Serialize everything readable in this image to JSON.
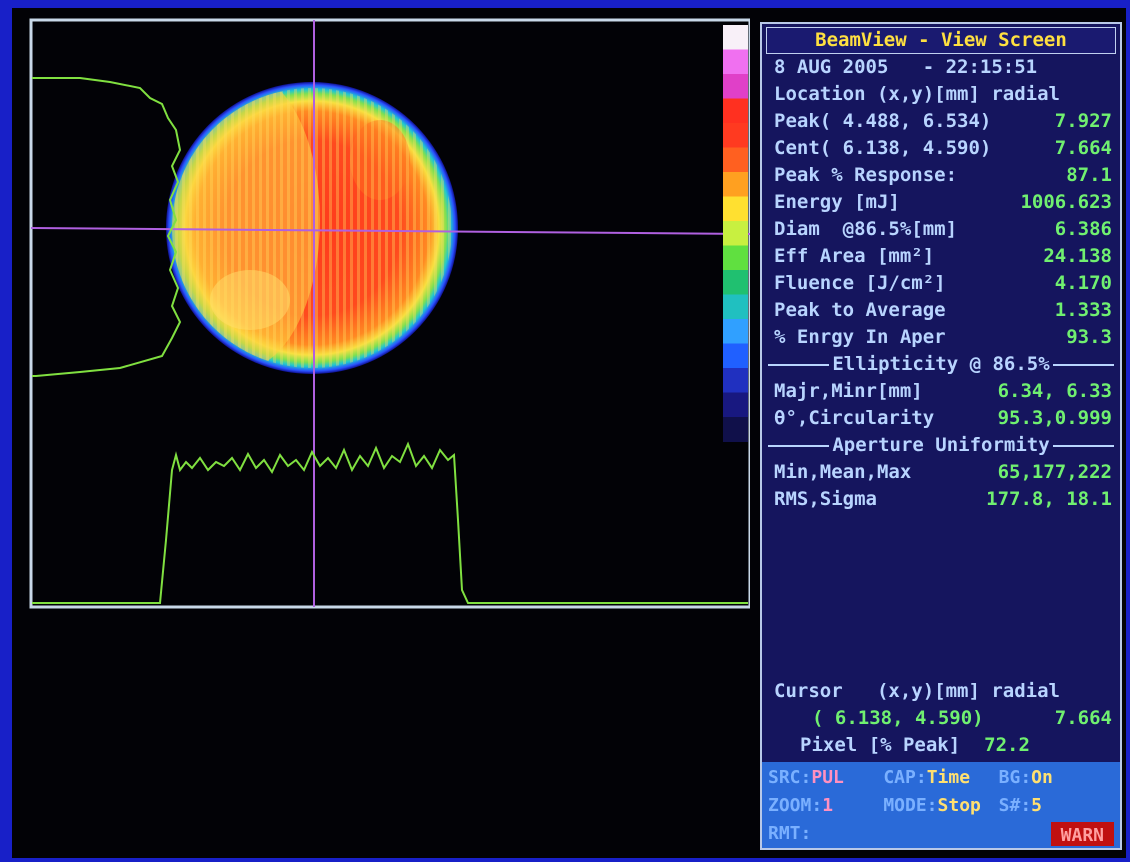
{
  "panel": {
    "title": "BeamView - View Screen",
    "timestamp": "8 AUG 2005   - 22:15:51",
    "location_header": "Location (x,y)[mm] radial",
    "rows": [
      {
        "label": "Peak( 4.488, 6.534)",
        "value": "7.927"
      },
      {
        "label": "Cent( 6.138, 4.590)",
        "value": "7.664"
      },
      {
        "label": "Peak % Response:",
        "value": "87.1"
      },
      {
        "label": "Energy [mJ]",
        "value": "1006.623"
      },
      {
        "label": "Diam  @86.5%[mm]",
        "value": "6.386"
      },
      {
        "label": "Eff Area [mm²]",
        "value": "24.138"
      },
      {
        "label": "Fluence [J/cm²]",
        "value": "4.170"
      },
      {
        "label": "Peak to Average",
        "value": "1.333"
      },
      {
        "label": "% Enrgy In Aper",
        "value": "93.3"
      }
    ],
    "ellipticity": {
      "header": "Ellipticity @ 86.5%",
      "rows": [
        {
          "label": "Majr,Minr[mm]",
          "value": "6.34, 6.33"
        },
        {
          "label": "θ°,Circularity",
          "value": "95.3,0.999"
        }
      ]
    },
    "aperture": {
      "header": "Aperture Uniformity",
      "rows": [
        {
          "label": "Min,Mean,Max",
          "value": "65,177,222"
        },
        {
          "label": "RMS,Sigma",
          "value": "177.8, 18.1"
        }
      ]
    },
    "cursor": {
      "header": "Cursor   (x,y)[mm] radial",
      "position": "( 6.138, 4.590)",
      "radial": "7.664",
      "pixel_label": "Pixel [% Peak]",
      "pixel_value": "72.2"
    }
  },
  "status": {
    "cells": [
      {
        "label": "SRC:",
        "value": "PUL"
      },
      {
        "label": "CAP:",
        "value": "Time"
      },
      {
        "label": "BG:",
        "value": "On"
      },
      {
        "label": "ZOOM:",
        "value": "1"
      },
      {
        "label": "MODE:",
        "value": "Stop"
      },
      {
        "label": "S#:",
        "value": "5"
      },
      {
        "label": "RMT:"
      }
    ],
    "warning": "WARN"
  }
}
